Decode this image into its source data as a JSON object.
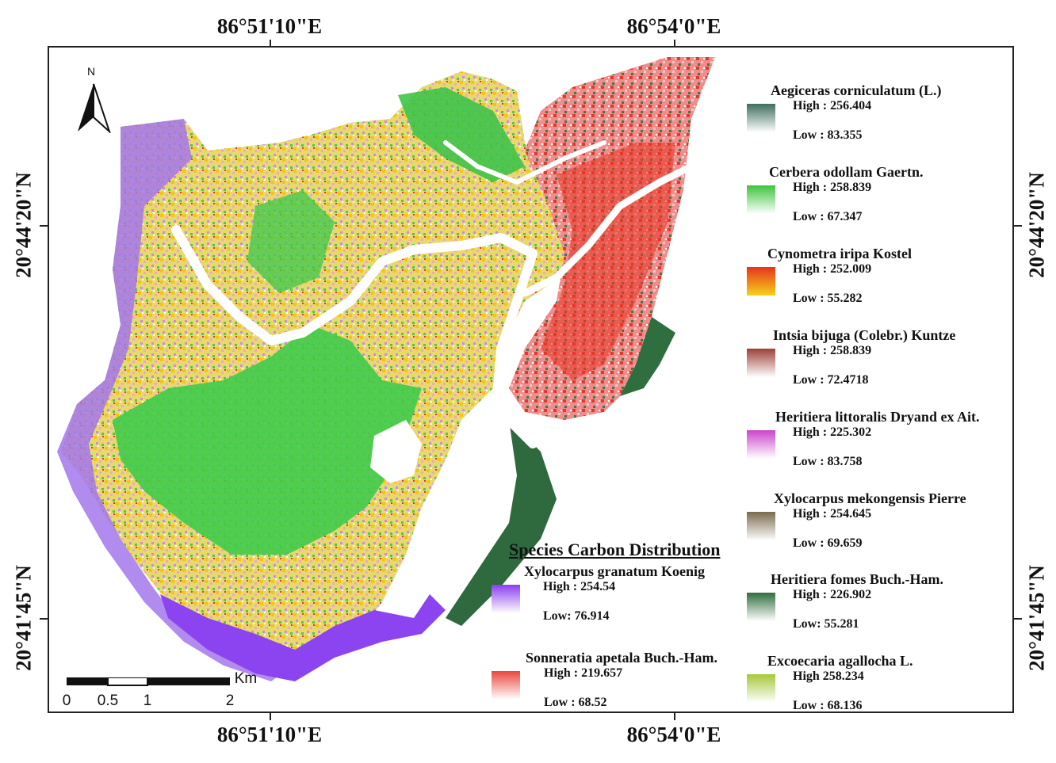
{
  "coords": {
    "top": [
      "86°51'10\"E",
      "86°54'0\"E"
    ],
    "bottom": [
      "86°51'10\"E",
      "86°54'0\"E"
    ],
    "left": [
      "20°44'20\"N",
      "20°41'45\"N"
    ],
    "right": [
      "20°44'20\"N",
      "20°41'45\"N"
    ]
  },
  "north_arrow": {
    "letter": "N"
  },
  "scale_bar": {
    "labels": [
      "0",
      "0.5",
      "1",
      "2"
    ],
    "unit": "Km"
  },
  "legend_title": "Species Carbon Distribution",
  "legend": [
    {
      "name": "Aegiceras corniculatum (L.)",
      "high": "High : 256.404",
      "low": "Low : 83.355",
      "color": "#3e6e5e"
    },
    {
      "name": "Cerbera odollam Gaertn.",
      "high": "High : 258.839",
      "low": "Low : 67.347",
      "color": "#3cc43c"
    },
    {
      "name": "Cynometra iripa Kostel",
      "high": "High : 252.009",
      "low": "Low : 55.282",
      "color": "#e8331c",
      "color2": "#f5d21a"
    },
    {
      "name": "Intsia bijuga (Colebr.) Kuntze",
      "high": "High : 258.839",
      "low": "Low : 72.4718",
      "color": "#9c4038"
    },
    {
      "name": "Heritiera littoralis Dryand ex Ait.",
      "high": "High : 225.302",
      "low": "Low : 83.758",
      "color": "#cc44cc"
    },
    {
      "name": "Xylocarpus mekongensis Pierre",
      "high": "High : 254.645",
      "low": "Low : 69.659",
      "color": "#7a6a4e"
    },
    {
      "name": "Heritiera fomes Buch.-Ham.",
      "high": "High : 226.902",
      "low": "Low: 55.281",
      "color": "#2f6e3e"
    },
    {
      "name": "Excoecaria agallocha L.",
      "high": "High  258.234",
      "low": "Low : 68.136",
      "color": "#a6c83a"
    },
    {
      "name": "Xylocarpus granatum Koenig",
      "high": "High : 254.54",
      "low": "Low: 76.914",
      "color": "#8a3cf0"
    },
    {
      "name": "Sonneratia apetala Buch.-Ham.",
      "high": "High : 219.657",
      "low": "Low : 68.52",
      "color": "#e8473c"
    }
  ]
}
